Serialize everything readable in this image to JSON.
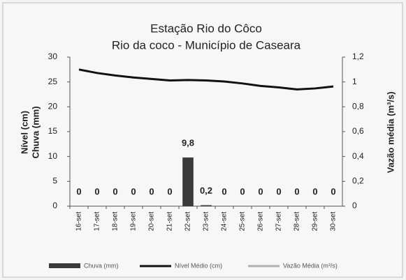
{
  "chart_data": {
    "type": "bar_line",
    "title": "Estação Rio do Côco",
    "subtitle": "Rio da coco - Município de Caseara",
    "y_label": [
      "Nível (cm)",
      "Chuva (mm)"
    ],
    "y2_label": "Vazão média (m³/s)",
    "categories": [
      "16-set",
      "17-set",
      "18-set",
      "19-set",
      "20-set",
      "21-set",
      "22-set",
      "23-set",
      "24-set",
      "25-set",
      "26-set",
      "27-set",
      "28-set",
      "29-set",
      "30-set"
    ],
    "series": [
      {
        "name": "Chuva (mm)",
        "kind": "bar",
        "color": "#3a3a3a",
        "values": [
          0,
          0,
          0,
          0,
          0,
          0,
          9.8,
          0.2,
          0,
          0,
          0,
          0,
          0,
          0,
          0
        ],
        "value_labels": [
          "0",
          "0",
          "0",
          "0",
          "0",
          "0",
          "9,8",
          "0,2",
          "0",
          "0",
          "0",
          "0",
          "0",
          "0",
          "0"
        ]
      },
      {
        "name": "Nível Médio (cm)",
        "kind": "line",
        "color": "#111111",
        "values": [
          27.5,
          26.8,
          26.3,
          25.9,
          25.6,
          25.3,
          25.4,
          25.3,
          25.1,
          24.7,
          24.2,
          23.9,
          23.5,
          23.7,
          24.1
        ]
      },
      {
        "name": "Vazão Média (m³/s)",
        "kind": "line",
        "color": "#b0b0b0",
        "axis": "y2",
        "values": [
          null,
          null,
          null,
          null,
          null,
          null,
          null,
          null,
          null,
          null,
          null,
          null,
          null,
          null,
          null
        ]
      }
    ],
    "ylim": [
      0,
      30
    ],
    "yticks": [
      0,
      5,
      10,
      15,
      20,
      25,
      30
    ],
    "y2lim": [
      0,
      1.2
    ],
    "y2ticks": [
      0,
      {
        "value": 0.2,
        "label": "0,2"
      },
      {
        "value": 0.4,
        "label": "0,4"
      },
      {
        "value": 0.6,
        "label": "0,6"
      },
      {
        "value": 0.8,
        "label": "0,8"
      },
      1,
      {
        "value": 1.2,
        "label": "1,2"
      }
    ]
  }
}
